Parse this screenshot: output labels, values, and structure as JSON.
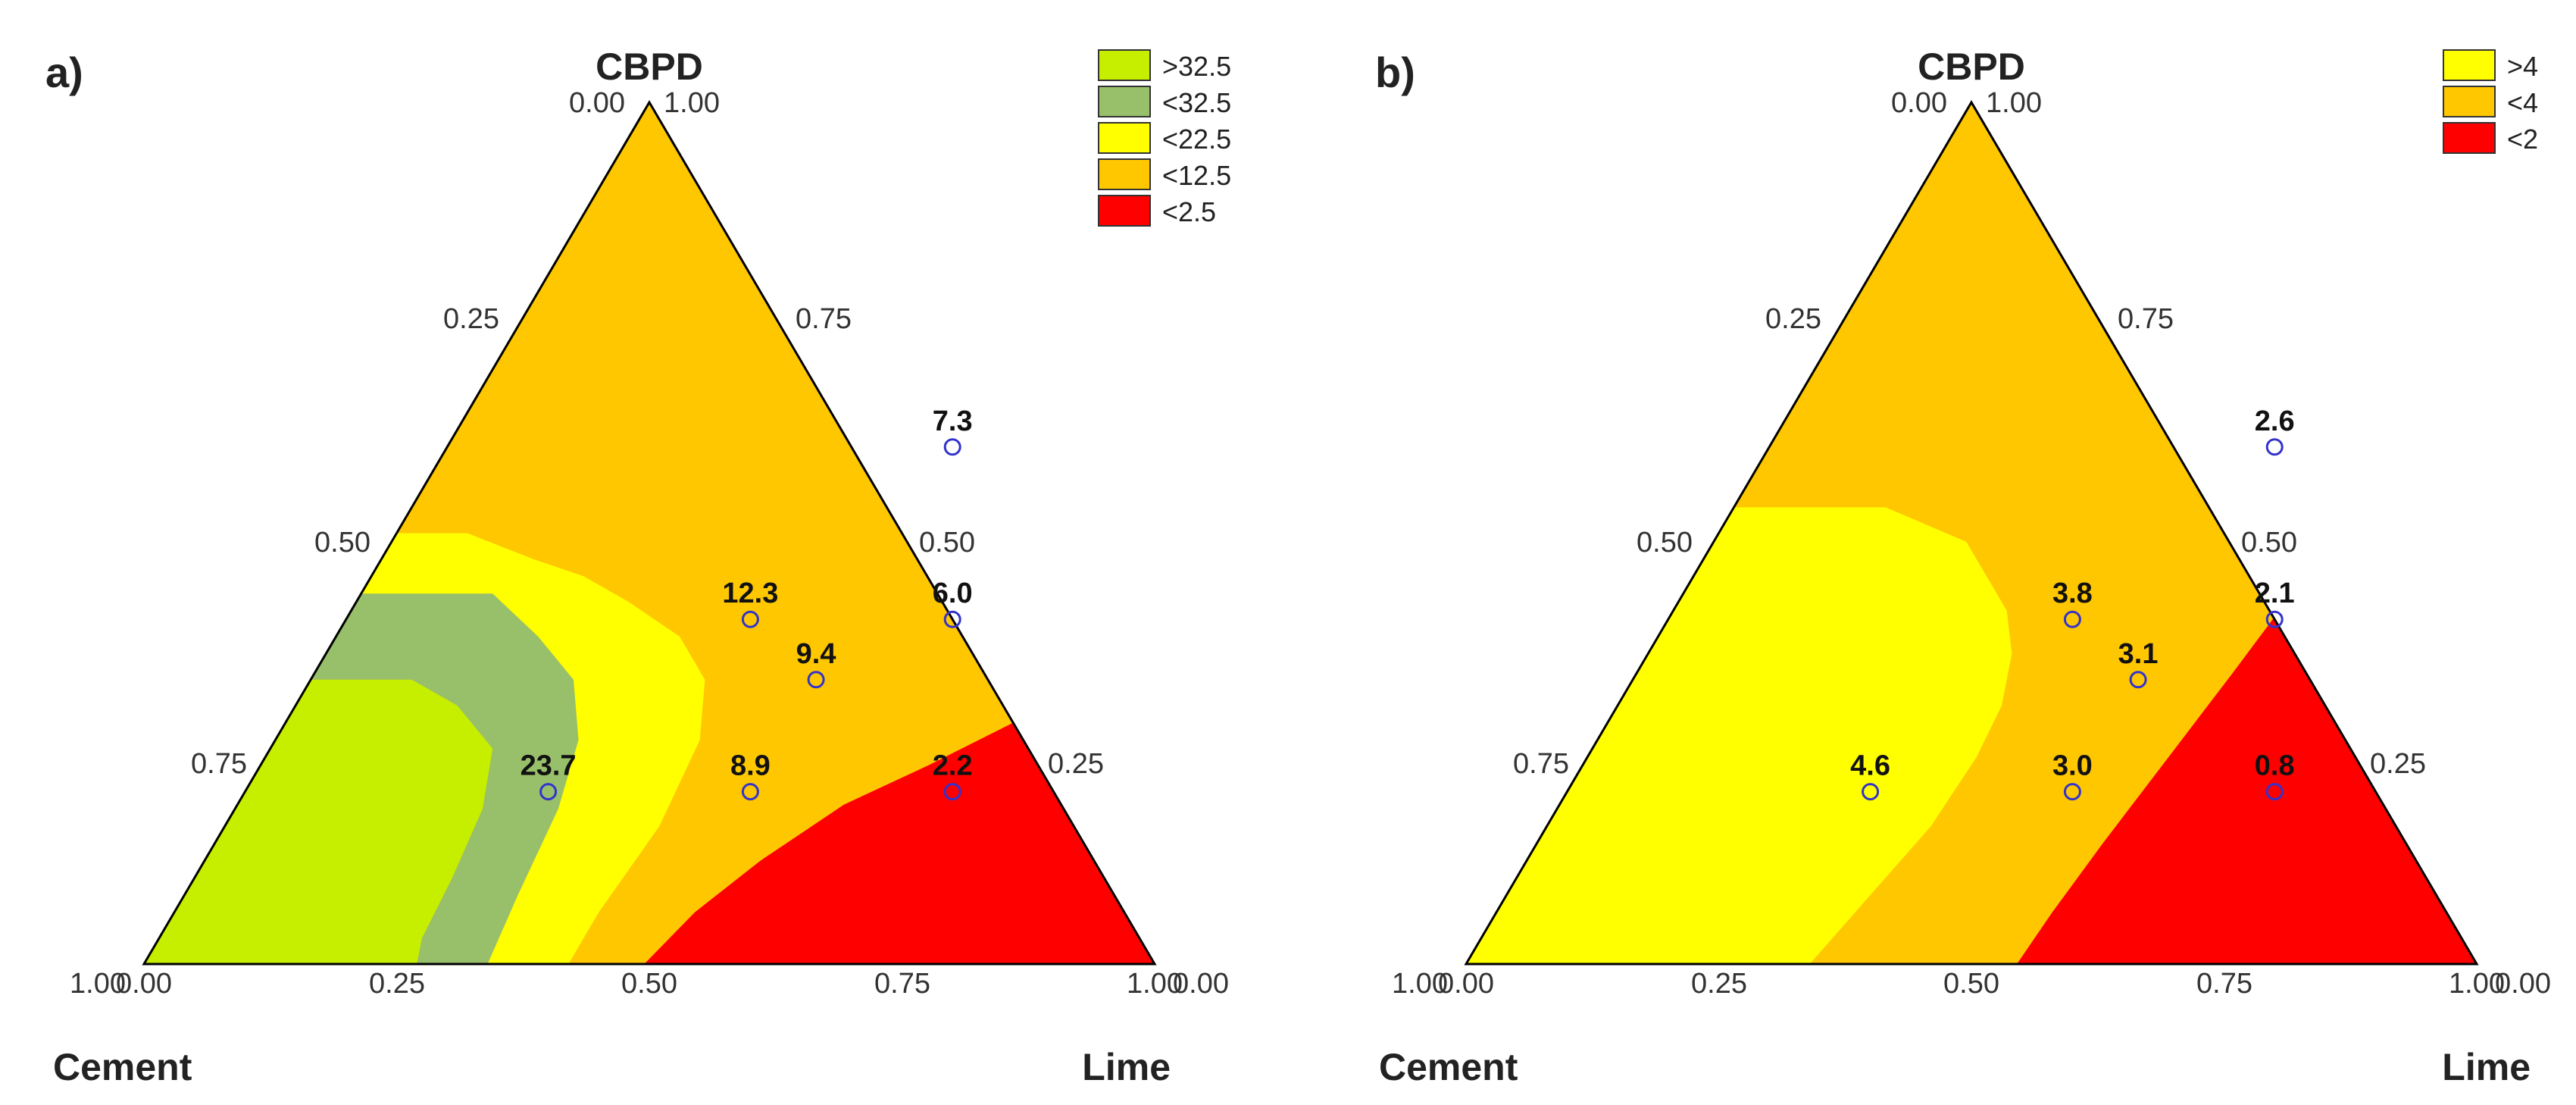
{
  "chart_data": [
    {
      "type": "ternary-contour",
      "panel_label": "a)",
      "vertices": {
        "top": "CBPD",
        "left": "Cement",
        "right": "Lime"
      },
      "ticks": [
        "0.00",
        "0.25",
        "0.50",
        "0.75",
        "1.00"
      ],
      "legend": [
        {
          "label": ">32.5",
          "color": "#c6ef00"
        },
        {
          "label": "<32.5",
          "color": "#98c06a"
        },
        {
          "label": "<22.5",
          "color": "#ffff00"
        },
        {
          "label": "<12.5",
          "color": "#fec700"
        },
        {
          "label": "<2.5",
          "color": "#ff0000"
        }
      ],
      "points": [
        {
          "lime": 0.5,
          "cbpd": 0.6,
          "value": "7.3"
        },
        {
          "lime": 0.4,
          "cbpd": 0.4,
          "value": "12.3"
        },
        {
          "lime": 0.6,
          "cbpd": 0.4,
          "value": "6.0"
        },
        {
          "lime": 0.5,
          "cbpd": 0.33,
          "value": "9.4"
        },
        {
          "lime": 0.3,
          "cbpd": 0.2,
          "value": "23.7"
        },
        {
          "lime": 0.5,
          "cbpd": 0.2,
          "value": "8.9"
        },
        {
          "lime": 0.7,
          "cbpd": 0.2,
          "value": "2.2"
        }
      ],
      "regions": [
        {
          "color": "#c6ef00",
          "poly": [
            [
              0,
              0
            ],
            [
              0.27,
              0
            ],
            [
              0.26,
              0.03
            ],
            [
              0.255,
              0.1
            ],
            [
              0.245,
              0.18
            ],
            [
              0.22,
              0.25
            ],
            [
              0.16,
              0.3
            ],
            [
              0.1,
              0.33
            ],
            [
              0,
              0.33
            ]
          ]
        },
        {
          "color": "#98c06a",
          "poly": [
            [
              0.27,
              0
            ],
            [
              0.34,
              0
            ],
            [
              0.33,
              0.08
            ],
            [
              0.32,
              0.18
            ],
            [
              0.3,
              0.26
            ],
            [
              0.26,
              0.33
            ],
            [
              0.2,
              0.38
            ],
            [
              0.13,
              0.43
            ],
            [
              0,
              0.43
            ],
            [
              0,
              0.33
            ],
            [
              0.1,
              0.33
            ],
            [
              0.16,
              0.3
            ],
            [
              0.22,
              0.25
            ],
            [
              0.245,
              0.18
            ],
            [
              0.255,
              0.1
            ],
            [
              0.26,
              0.03
            ]
          ]
        },
        {
          "color": "#ffff00",
          "poly": [
            [
              0.34,
              0
            ],
            [
              0.42,
              0
            ],
            [
              0.42,
              0.06
            ],
            [
              0.43,
              0.16
            ],
            [
              0.42,
              0.26
            ],
            [
              0.39,
              0.33
            ],
            [
              0.34,
              0.38
            ],
            [
              0.27,
              0.42
            ],
            [
              0.21,
              0.45
            ],
            [
              0.15,
              0.47
            ],
            [
              0.07,
              0.5
            ],
            [
              0,
              0.5
            ],
            [
              0,
              0.43
            ],
            [
              0.13,
              0.43
            ],
            [
              0.2,
              0.38
            ],
            [
              0.26,
              0.33
            ],
            [
              0.3,
              0.26
            ],
            [
              0.32,
              0.18
            ],
            [
              0.33,
              0.08
            ]
          ]
        },
        {
          "color": "#ff0000",
          "poly": [
            [
              0.495,
              0
            ],
            [
              1,
              0
            ],
            [
              0.755,
              0.49
            ],
            [
              0.735,
              0.43
            ],
            [
              0.73,
              0.33
            ],
            [
              0.735,
              0.3
            ],
            [
              0.72,
              0.28
            ],
            [
              0.66,
              0.23
            ],
            [
              0.6,
              0.185
            ],
            [
              0.55,
              0.12
            ],
            [
              0.515,
              0.06
            ]
          ]
        }
      ]
    },
    {
      "type": "ternary-contour",
      "panel_label": "b)",
      "vertices": {
        "top": "CBPD",
        "left": "Cement",
        "right": "Lime"
      },
      "ticks": [
        "0.00",
        "0.25",
        "0.50",
        "0.75",
        "1.00"
      ],
      "legend": [
        {
          "label": ">4",
          "color": "#ffff00"
        },
        {
          "label": "<4",
          "color": "#fec700"
        },
        {
          "label": "<2",
          "color": "#ff0000"
        }
      ],
      "points": [
        {
          "lime": 0.5,
          "cbpd": 0.6,
          "value": "2.6"
        },
        {
          "lime": 0.4,
          "cbpd": 0.4,
          "value": "3.8"
        },
        {
          "lime": 0.6,
          "cbpd": 0.4,
          "value": "2.1"
        },
        {
          "lime": 0.5,
          "cbpd": 0.33,
          "value": "3.1"
        },
        {
          "lime": 0.3,
          "cbpd": 0.2,
          "value": "4.6"
        },
        {
          "lime": 0.5,
          "cbpd": 0.2,
          "value": "3.0"
        },
        {
          "lime": 0.7,
          "cbpd": 0.2,
          "value": "0.8"
        }
      ],
      "regions": [
        {
          "color": "#ffff00",
          "poly": [
            [
              0,
              0
            ],
            [
              0.34,
              0
            ],
            [
              0.36,
              0.08
            ],
            [
              0.38,
              0.16
            ],
            [
              0.385,
              0.24
            ],
            [
              0.38,
              0.3
            ],
            [
              0.36,
              0.36
            ],
            [
              0.33,
              0.41
            ],
            [
              0.29,
              0.45
            ],
            [
              0.25,
              0.49
            ],
            [
              0.2,
              0.51
            ],
            [
              0.15,
              0.53
            ],
            [
              0,
              0.53
            ]
          ]
        },
        {
          "color": "#ff0000",
          "poly": [
            [
              0.545,
              0
            ],
            [
              1,
              0
            ],
            [
              0.5,
              1
            ],
            [
              0.44,
              0.88
            ],
            [
              0.55,
              0.84
            ],
            [
              0.6,
              0.73
            ],
            [
              0.61,
              0.6
            ],
            [
              0.605,
              0.45
            ],
            [
              0.59,
              0.34
            ],
            [
              0.575,
              0.24
            ],
            [
              0.56,
              0.14
            ],
            [
              0.55,
              0.06
            ]
          ]
        }
      ]
    }
  ]
}
